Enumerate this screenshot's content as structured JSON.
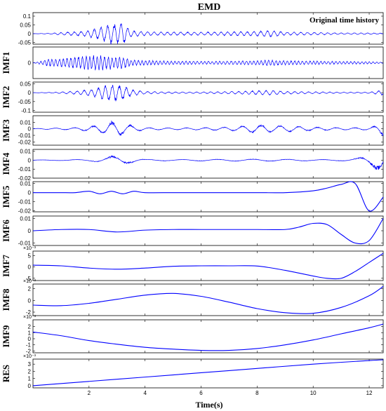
{
  "figure": {
    "title": "EMD",
    "xlabel": "Time(s)",
    "line_color": "#0000ff"
  },
  "chart_data": {
    "type": "line",
    "title": "EMD",
    "xlabel": "Time(s)",
    "xlim": [
      0,
      12.5
    ],
    "xticks": [
      2,
      4,
      6,
      8,
      10,
      12
    ],
    "grid": false,
    "panels": [
      {
        "id": "original",
        "ylabel": "",
        "legend": "Original time history",
        "legend_position": "top-right",
        "ylim": [
          -0.06,
          0.12
        ],
        "yticks": [
          0.1,
          0.05,
          0,
          -0.05
        ],
        "ytick_labels": [
          "0.1",
          "0.05",
          "0",
          "-0.05"
        ],
        "exponent_label": "",
        "x": [
          0,
          0.5,
          1,
          1.5,
          2,
          2.2,
          2.4,
          2.6,
          2.8,
          3.0,
          3.2,
          3.3,
          3.5,
          4,
          5,
          6,
          7,
          8,
          8.5,
          9,
          10,
          11,
          12,
          12.5
        ],
        "y_envelope": [
          0,
          0.002,
          0.008,
          0.012,
          0.02,
          0.03,
          0.04,
          0.05,
          0.06,
          0.06,
          0.07,
          0.05,
          0.02,
          0.012,
          0.01,
          0.01,
          0.012,
          0.015,
          0.02,
          0.01,
          0.008,
          0.005,
          0.005,
          0.003
        ]
      },
      {
        "id": "imf1",
        "ylabel": "IMF1",
        "legend": "",
        "ylim": [
          -0.05,
          0.05
        ],
        "yticks": [
          0
        ],
        "ytick_labels": [
          "0"
        ],
        "exponent_label": "",
        "x": [
          0,
          0.3,
          0.5,
          1,
          1.5,
          2,
          2.5,
          3,
          3.3,
          3.5,
          4,
          5,
          6,
          7,
          8,
          8.5,
          9,
          10,
          11,
          12,
          12.5
        ],
        "y_envelope": [
          0,
          0.006,
          0.012,
          0.015,
          0.02,
          0.025,
          0.025,
          0.02,
          0.018,
          0.01,
          0.008,
          0.006,
          0.005,
          0.006,
          0.007,
          0.01,
          0.007,
          0.006,
          0.005,
          0.004,
          0.002
        ]
      },
      {
        "id": "imf2",
        "ylabel": "IMF2",
        "legend": "",
        "ylim": [
          -0.11,
          0.06
        ],
        "yticks": [
          0.05,
          0,
          -0.05,
          -0.1
        ],
        "ytick_labels": [
          "0.05",
          "0",
          "-0.05",
          "-0.1"
        ],
        "exponent_label": "",
        "x": [
          0,
          0.5,
          1,
          1.5,
          2,
          2.3,
          2.6,
          2.9,
          3.2,
          3.5,
          4,
          5,
          6,
          7,
          7.5,
          8,
          8.5,
          9,
          10,
          11,
          12,
          12.5
        ],
        "y_envelope": [
          0,
          0.002,
          0.005,
          0.01,
          0.02,
          0.03,
          0.045,
          0.05,
          0.045,
          0.02,
          0.008,
          0.005,
          0.005,
          0.007,
          0.009,
          0.012,
          0.015,
          0.008,
          0.006,
          0.004,
          0.004,
          0.015
        ]
      },
      {
        "id": "imf3",
        "ylabel": "IMF3",
        "legend": "",
        "ylim": [
          -0.025,
          0.02
        ],
        "yticks": [
          0.01,
          0,
          -0.01,
          -0.02
        ],
        "ytick_labels": [
          "0.01",
          "0",
          "-0.01",
          "-0.02"
        ],
        "exponent_label": "",
        "x": [
          0,
          1,
          1.5,
          2,
          2.5,
          2.8,
          3.1,
          3.5,
          4,
          5,
          6,
          7,
          7.5,
          8,
          8.5,
          9,
          9.5,
          10,
          11,
          12,
          12.3,
          12.5
        ],
        "y_envelope": [
          0.0005,
          0.0015,
          0.002,
          0.004,
          0.008,
          0.012,
          0.011,
          0.006,
          0.002,
          0.0015,
          0.002,
          0.003,
          0.005,
          0.007,
          0.006,
          0.005,
          0.004,
          0.003,
          0.002,
          0.002,
          0.006,
          0.012
        ]
      },
      {
        "id": "imf4",
        "ylabel": "IMF4",
        "legend": "",
        "ylim": [
          -0.02,
          0.012
        ],
        "yticks": [
          0.01,
          0,
          -0.01,
          -0.02
        ],
        "ytick_labels": [
          "0.01",
          "0",
          "-0.01",
          "-0.02"
        ],
        "exponent_label": "",
        "x": [
          0,
          1,
          2,
          2.5,
          3.0,
          3.4,
          4,
          5,
          6,
          7,
          8,
          9,
          10,
          11,
          11.5,
          12,
          12.3,
          12.5
        ],
        "y_envelope": [
          0.0003,
          0.0005,
          0.001,
          0.003,
          0.006,
          0.004,
          0.001,
          0.0008,
          0.001,
          0.0012,
          0.0014,
          0.0012,
          0.0008,
          0.0008,
          0.002,
          0.006,
          0.012,
          0.015
        ]
      },
      {
        "id": "imf5",
        "ylabel": "IMF5",
        "legend": "",
        "ylim": [
          -0.021,
          0.012
        ],
        "yticks": [
          0.01,
          0,
          -0.01,
          -0.02
        ],
        "ytick_labels": [
          "0.01",
          "0",
          "-0.01",
          "-0.02"
        ],
        "exponent_label": "",
        "x": [
          0,
          0.5,
          1,
          1.5,
          2,
          2.4,
          2.8,
          3.2,
          3.6,
          4,
          5,
          6,
          7,
          8,
          9,
          10,
          10.5,
          11,
          11.5,
          12,
          12.5
        ],
        "y": [
          0,
          0,
          0,
          0,
          0.0015,
          -0.0013,
          0.0015,
          -0.0013,
          0.0015,
          0,
          0,
          0,
          0,
          0,
          0,
          0.002,
          0.005,
          0.009,
          0.01,
          -0.02,
          -0.005
        ]
      },
      {
        "id": "imf6",
        "ylabel": "IMF6",
        "legend": "",
        "ylim": [
          -0.012,
          0.012
        ],
        "yticks": [
          0.01,
          0,
          -0.01
        ],
        "ytick_labels": [
          "0.01",
          "0",
          "-0.01"
        ],
        "exponent_label": "",
        "x": [
          0,
          1,
          2,
          3,
          4,
          5,
          6,
          7,
          8,
          9,
          9.5,
          10,
          10.5,
          11,
          11.5,
          12,
          12.5
        ],
        "y": [
          0,
          0.001,
          0.001,
          -0.001,
          0.0005,
          0.001,
          0.001,
          0.001,
          0.001,
          0.001,
          0.003,
          0.006,
          0.005,
          -0.003,
          -0.01,
          -0.008,
          0.01
        ]
      },
      {
        "id": "imf7",
        "ylabel": "IMF7",
        "legend": "",
        "ylim": [
          -0.006,
          0.007
        ],
        "yticks": [
          0.005,
          0,
          -0.005
        ],
        "ytick_labels": [
          "5",
          "0",
          "-5"
        ],
        "exponent_label": "×10⁻³",
        "x": [
          0,
          1,
          2,
          3,
          4,
          5,
          6,
          7,
          8,
          9,
          10,
          10.5,
          11,
          11.5,
          12,
          12.5
        ],
        "y": [
          0.0008,
          0.0005,
          -0.0005,
          -0.001,
          -0.0005,
          0.0003,
          0.0005,
          0.0005,
          0.0004,
          -0.0015,
          -0.004,
          -0.005,
          -0.005,
          -0.002,
          0.002,
          0.006
        ]
      },
      {
        "id": "imf8",
        "ylabel": "IMF8",
        "legend": "",
        "ylim": [
          -0.0026,
          0.0028
        ],
        "yticks": [
          0.002,
          0,
          -0.002
        ],
        "ytick_labels": [
          "2",
          "0",
          "-2"
        ],
        "exponent_label": "×10⁻³",
        "x": [
          0,
          1,
          2,
          3,
          4,
          5,
          6,
          7,
          8,
          9,
          10,
          11,
          12,
          12.5
        ],
        "y": [
          -0.0008,
          -0.0009,
          -0.0005,
          0.0002,
          0.0009,
          0.0012,
          0.0007,
          -0.0003,
          -0.0014,
          -0.0021,
          -0.0022,
          -0.0012,
          0.0008,
          0.0024
        ]
      },
      {
        "id": "imf9",
        "ylabel": "IMF9",
        "legend": "",
        "ylim": [
          -0.0023,
          0.0031
        ],
        "yticks": [
          0.002,
          0.001,
          0,
          -0.001,
          -0.002
        ],
        "ytick_labels": [
          "2",
          "1",
          "0",
          "-1",
          "-2"
        ],
        "exponent_label": "×10⁻³",
        "x": [
          0,
          1,
          2,
          3,
          4,
          5,
          6,
          7,
          8,
          9,
          10,
          11,
          12,
          12.5
        ],
        "y": [
          0.0011,
          0.0005,
          -0.0003,
          -0.0009,
          -0.0014,
          -0.0017,
          -0.0019,
          -0.0019,
          -0.0016,
          -0.001,
          -0.0002,
          0.0008,
          0.0018,
          0.0024
        ]
      },
      {
        "id": "res",
        "ylabel": "RES",
        "legend": "",
        "ylim": [
          -0.0003,
          0.0037
        ],
        "yticks": [
          0.003,
          0.002,
          0.001,
          0
        ],
        "ytick_labels": [
          "3",
          "2",
          "1",
          "0"
        ],
        "exponent_label": "×10⁻³",
        "x": [
          0,
          2,
          4,
          6,
          8,
          10,
          12,
          12.5
        ],
        "y": [
          0,
          0.0006,
          0.0012,
          0.0018,
          0.0024,
          0.003,
          0.0035,
          0.0036
        ]
      }
    ]
  }
}
